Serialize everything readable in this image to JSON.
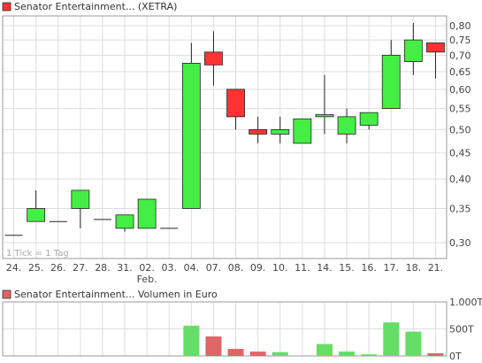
{
  "colors": {
    "up": "#44ee44",
    "down": "#ff3333",
    "volume_up": "#66dd66",
    "volume_down": "#dd6666",
    "grid": "#dddddd",
    "frame": "#999999",
    "text": "#444444"
  },
  "chart_data": [
    {
      "type": "candlestick",
      "title": "Senator Entertainment... (XETRA)",
      "legend_color": "#ff3333",
      "note": "1 Tick = 1 Tag",
      "grid": true,
      "y_scale": "log",
      "ylim": [
        0.28,
        0.84
      ],
      "y_ticks": [
        "0,80",
        "0,75",
        "0,70",
        "0,65",
        "0,60",
        "0,55",
        "0,50",
        "0,45",
        "0,40",
        "0,35",
        "0,30"
      ],
      "y_tick_values": [
        0.8,
        0.75,
        0.7,
        0.65,
        0.6,
        0.55,
        0.5,
        0.45,
        0.4,
        0.35,
        0.3
      ],
      "x_labels": [
        "24.",
        "25.",
        "26.",
        "27.",
        "28.",
        "31.",
        "02.",
        "03.",
        "04.",
        "07.",
        "08.",
        "09.",
        "10.",
        "11.",
        "14.",
        "15.",
        "16.",
        "17.",
        "18.",
        "21."
      ],
      "x_sublabel": {
        "index": 6,
        "text": "Feb."
      },
      "candles": [
        {
          "open": 0.31,
          "high": 0.31,
          "low": 0.31,
          "close": 0.31
        },
        {
          "open": 0.33,
          "high": 0.38,
          "low": 0.33,
          "close": 0.35
        },
        {
          "open": 0.33,
          "high": 0.33,
          "low": 0.33,
          "close": 0.33
        },
        {
          "open": 0.35,
          "high": 0.38,
          "low": 0.32,
          "close": 0.38
        },
        {
          "open": 0.333,
          "high": 0.333,
          "low": 0.333,
          "close": 0.333
        },
        {
          "open": 0.32,
          "high": 0.34,
          "low": 0.315,
          "close": 0.34
        },
        {
          "open": 0.32,
          "high": 0.365,
          "low": 0.32,
          "close": 0.365
        },
        {
          "open": 0.32,
          "high": 0.32,
          "low": 0.32,
          "close": 0.32
        },
        {
          "open": 0.35,
          "high": 0.74,
          "low": 0.35,
          "close": 0.675
        },
        {
          "open": 0.71,
          "high": 0.78,
          "low": 0.61,
          "close": 0.67
        },
        {
          "open": 0.6,
          "high": 0.6,
          "low": 0.5,
          "close": 0.53
        },
        {
          "open": 0.5,
          "high": 0.53,
          "low": 0.47,
          "close": 0.49
        },
        {
          "open": 0.49,
          "high": 0.53,
          "low": 0.47,
          "close": 0.5
        },
        {
          "open": 0.47,
          "high": 0.525,
          "low": 0.47,
          "close": 0.525
        },
        {
          "open": 0.53,
          "high": 0.64,
          "low": 0.49,
          "close": 0.535
        },
        {
          "open": 0.49,
          "high": 0.55,
          "low": 0.47,
          "close": 0.53
        },
        {
          "open": 0.51,
          "high": 0.54,
          "low": 0.5,
          "close": 0.54
        },
        {
          "open": 0.55,
          "high": 0.75,
          "low": 0.55,
          "close": 0.7
        },
        {
          "open": 0.68,
          "high": 0.81,
          "low": 0.64,
          "close": 0.75
        },
        {
          "open": 0.74,
          "high": 0.74,
          "low": 0.63,
          "close": 0.71
        }
      ]
    },
    {
      "type": "bar",
      "title": "Senator Entertainment... Volumen in Euro",
      "legend_color": "#dd6666",
      "grid": true,
      "ylim": [
        0,
        1000000
      ],
      "y_ticks": [
        "1.000T",
        "500T",
        "0T"
      ],
      "y_tick_values": [
        1000000,
        500000,
        0
      ],
      "values": [
        0,
        0,
        0,
        0,
        0,
        0,
        0,
        0,
        560000,
        360000,
        130000,
        80000,
        70000,
        0,
        220000,
        80000,
        30000,
        620000,
        450000,
        50000
      ]
    }
  ]
}
